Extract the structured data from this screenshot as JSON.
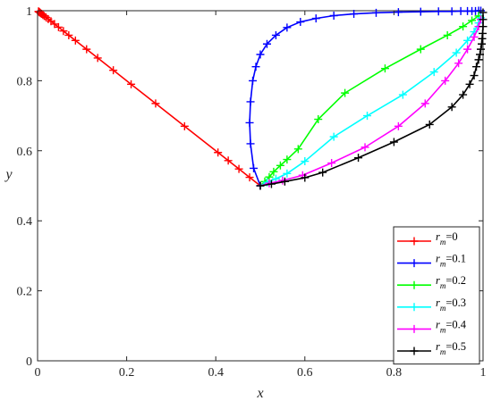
{
  "chart_data": {
    "type": "line",
    "xlabel": "x",
    "ylabel": "y",
    "xlim": [
      0,
      1
    ],
    "ylim": [
      0,
      1
    ],
    "xticks": [
      0,
      0.2,
      0.4,
      0.6,
      0.8,
      1
    ],
    "yticks": [
      0,
      0.2,
      0.4,
      0.6,
      0.8,
      1
    ],
    "xtick_labels": [
      "0",
      "0.2",
      "0.4",
      "0.6",
      "0.8",
      "1"
    ],
    "ytick_labels": [
      "0",
      "0.2",
      "0.4",
      "0.6",
      "0.8",
      "1"
    ],
    "grid": false,
    "legend_position": "bottom-right",
    "marker": "plus",
    "series": [
      {
        "name": "r_m=0",
        "legend_var": "r",
        "legend_sub": "m",
        "legend_val": "=0",
        "color": "#ff0000",
        "x": [
          0.5,
          0.476,
          0.452,
          0.428,
          0.405,
          0.33,
          0.265,
          0.21,
          0.17,
          0.135,
          0.11,
          0.085,
          0.07,
          0.058,
          0.047,
          0.038,
          0.03,
          0.024,
          0.019,
          0.015,
          0.012,
          0.009,
          0.007,
          0.005,
          0.004,
          0.003,
          0.002
        ],
        "y": [
          0.5,
          0.524,
          0.548,
          0.572,
          0.595,
          0.67,
          0.735,
          0.79,
          0.83,
          0.865,
          0.89,
          0.915,
          0.93,
          0.942,
          0.953,
          0.962,
          0.97,
          0.976,
          0.981,
          0.985,
          0.988,
          0.991,
          0.993,
          0.995,
          0.996,
          0.997,
          0.998
        ]
      },
      {
        "name": "r_m=0.1",
        "legend_var": "r",
        "legend_sub": "m",
        "legend_val": "=0.1",
        "color": "#0000ff",
        "x": [
          0.5,
          0.485,
          0.478,
          0.476,
          0.478,
          0.483,
          0.49,
          0.5,
          0.515,
          0.535,
          0.56,
          0.59,
          0.625,
          0.665,
          0.71,
          0.76,
          0.81,
          0.86,
          0.9,
          0.93,
          0.95,
          0.965,
          0.975,
          0.983,
          0.99,
          0.995
        ],
        "y": [
          0.5,
          0.55,
          0.62,
          0.68,
          0.74,
          0.8,
          0.84,
          0.875,
          0.905,
          0.93,
          0.952,
          0.968,
          0.978,
          0.986,
          0.991,
          0.994,
          0.996,
          0.997,
          0.998,
          0.998,
          0.999,
          0.999,
          0.999,
          0.999,
          1.0,
          1.0
        ]
      },
      {
        "name": "r_m=0.2",
        "legend_var": "r",
        "legend_sub": "m",
        "legend_val": "=0.2",
        "color": "#00ff00",
        "x": [
          0.5,
          0.51,
          0.52,
          0.53,
          0.545,
          0.56,
          0.585,
          0.63,
          0.69,
          0.78,
          0.86,
          0.92,
          0.955,
          0.975,
          0.99
        ],
        "y": [
          0.5,
          0.512,
          0.525,
          0.54,
          0.558,
          0.575,
          0.605,
          0.69,
          0.765,
          0.835,
          0.89,
          0.93,
          0.955,
          0.972,
          0.985
        ]
      },
      {
        "name": "r_m=0.3",
        "legend_var": "r",
        "legend_sub": "m",
        "legend_val": "=0.3",
        "color": "#00ffff",
        "x": [
          0.5,
          0.515,
          0.535,
          0.56,
          0.6,
          0.665,
          0.74,
          0.82,
          0.89,
          0.94,
          0.965,
          0.98,
          0.99,
          0.995
        ],
        "y": [
          0.5,
          0.51,
          0.52,
          0.535,
          0.57,
          0.64,
          0.7,
          0.76,
          0.825,
          0.88,
          0.915,
          0.94,
          0.965,
          0.98
        ]
      },
      {
        "name": "r_m=0.4",
        "legend_var": "r",
        "legend_sub": "m",
        "legend_val": "=0.4",
        "color": "#ff00ff",
        "x": [
          0.5,
          0.52,
          0.55,
          0.595,
          0.66,
          0.735,
          0.81,
          0.87,
          0.915,
          0.945,
          0.965,
          0.98,
          0.99,
          0.995
        ],
        "y": [
          0.5,
          0.507,
          0.515,
          0.53,
          0.565,
          0.61,
          0.67,
          0.735,
          0.8,
          0.85,
          0.89,
          0.925,
          0.955,
          0.975
        ]
      },
      {
        "name": "r_m=0.5",
        "legend_var": "r",
        "legend_sub": "m",
        "legend_val": "=0.5",
        "color": "#000000",
        "x": [
          0.5,
          0.525,
          0.555,
          0.6,
          0.64,
          0.72,
          0.8,
          0.88,
          0.93,
          0.955,
          0.97,
          0.98,
          0.985,
          0.99,
          0.993,
          0.995,
          0.997,
          0.998,
          0.999,
          1.0,
          1.0,
          1.0
        ],
        "y": [
          0.5,
          0.505,
          0.512,
          0.523,
          0.538,
          0.58,
          0.625,
          0.675,
          0.725,
          0.76,
          0.79,
          0.815,
          0.84,
          0.86,
          0.875,
          0.89,
          0.905,
          0.92,
          0.935,
          0.955,
          0.975,
          0.995
        ]
      }
    ]
  }
}
